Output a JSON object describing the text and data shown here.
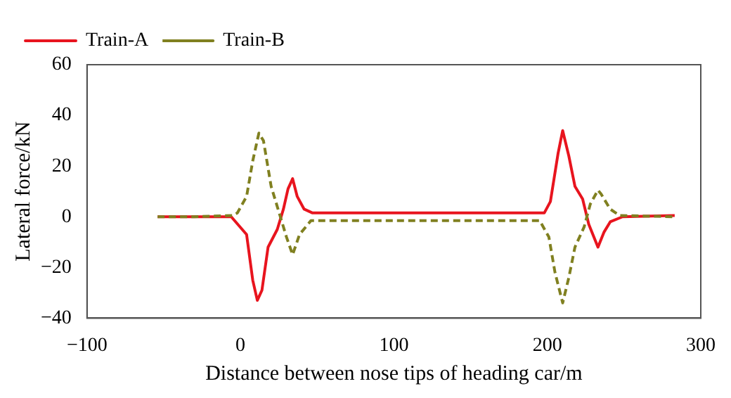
{
  "chart_data": {
    "type": "line",
    "xlabel": "Distance between nose tips of heading car/m",
    "ylabel": "Lateral force/kN",
    "xlim": [
      -100,
      300
    ],
    "xticks": [
      -100,
      0,
      100,
      200,
      300
    ],
    "ylim": [
      -40,
      60
    ],
    "yticks": [
      -40,
      -20,
      0,
      20,
      40,
      60
    ],
    "grid": false,
    "legend": "top left",
    "marker": "none",
    "series": [
      {
        "name": "Train-A",
        "color": "#e8141e",
        "line_style": "solid",
        "x": [
          -54,
          -30,
          -6,
          4,
          8,
          11,
          14,
          18,
          24,
          28,
          31,
          34,
          37,
          41.5,
          47,
          100,
          150,
          198,
          202,
          207,
          210,
          214,
          218,
          223,
          227,
          233,
          237,
          241,
          249,
          283
        ],
        "values": [
          0,
          0,
          0,
          -7,
          -25,
          -33,
          -29,
          -12,
          -5,
          3,
          11,
          15,
          8,
          3,
          1.5,
          1.5,
          1.5,
          1.5,
          6,
          25,
          34,
          24,
          12,
          7,
          -3,
          -12,
          -6,
          -2,
          0,
          0.5
        ]
      },
      {
        "name": "Train-B",
        "color": "#808020",
        "line_style": "dashed",
        "x": [
          -54,
          -30,
          -5,
          -2,
          4,
          8,
          12,
          15,
          20,
          24,
          30,
          34,
          38.5,
          46,
          100,
          150,
          195,
          201,
          205,
          210,
          214,
          218,
          224,
          228,
          233,
          235,
          241,
          247,
          283
        ],
        "values": [
          0,
          0,
          0.5,
          1.5,
          8,
          22,
          33,
          30,
          12,
          4,
          -8,
          -15,
          -7,
          -1.5,
          -1.5,
          -1.5,
          -1.5,
          -8,
          -22,
          -34,
          -24,
          -12,
          -4,
          5,
          10.5,
          9,
          3,
          0.5,
          0
        ]
      }
    ]
  }
}
